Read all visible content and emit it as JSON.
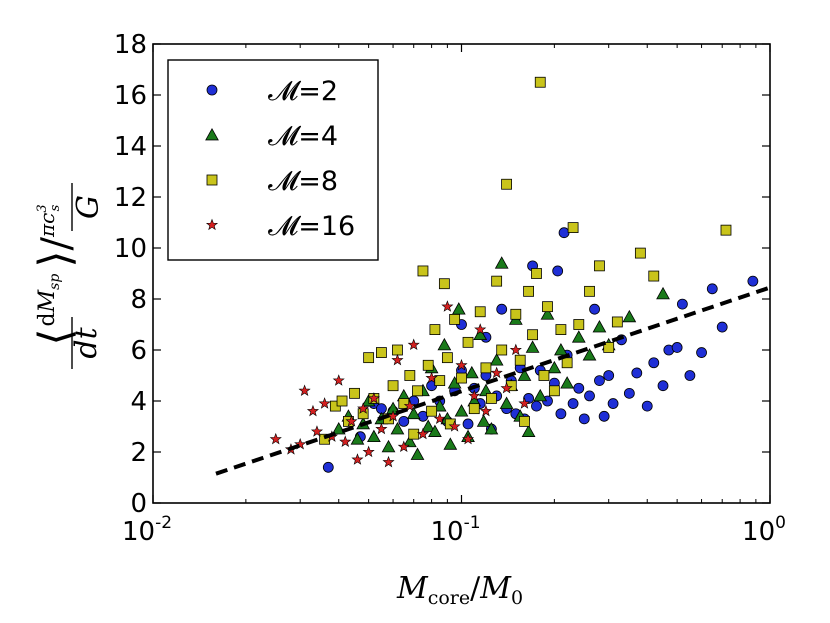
{
  "chart_data": {
    "type": "scatter",
    "xscale": "log",
    "xlim": [
      0.01,
      1.0
    ],
    "ylim": [
      0,
      18
    ],
    "xticks": [
      {
        "value": 0.01,
        "base": "10",
        "exp": "-2"
      },
      {
        "value": 0.1,
        "base": "10",
        "exp": "-1"
      },
      {
        "value": 1.0,
        "base": "10",
        "exp": "0"
      }
    ],
    "yticks": [
      "0",
      "2",
      "4",
      "6",
      "8",
      "10",
      "12",
      "14",
      "16",
      "18"
    ],
    "xlabel": "Mcore/M0",
    "ylabel": "⟨dMsp/dt⟩ / (πcs³/G)",
    "legend_location": "upper-left",
    "fit_line": {
      "style": "dashed",
      "x": [
        0.016,
        1.0
      ],
      "y": [
        1.15,
        8.45
      ]
    },
    "series": [
      {
        "name": "𝓜=2",
        "marker": "circle",
        "color": "#1f2fd6",
        "points": [
          [
            0.037,
            1.4
          ],
          [
            0.047,
            2.6
          ],
          [
            0.052,
            3.9
          ],
          [
            0.055,
            3.7
          ],
          [
            0.06,
            3.6
          ],
          [
            0.065,
            3.2
          ],
          [
            0.07,
            4.0
          ],
          [
            0.075,
            3.4
          ],
          [
            0.08,
            4.6
          ],
          [
            0.085,
            4.0
          ],
          [
            0.09,
            3.2
          ],
          [
            0.095,
            4.4
          ],
          [
            0.1,
            5.2
          ],
          [
            0.1,
            7.0
          ],
          [
            0.105,
            3.1
          ],
          [
            0.11,
            4.5
          ],
          [
            0.115,
            3.9
          ],
          [
            0.12,
            5.0
          ],
          [
            0.12,
            6.5
          ],
          [
            0.125,
            2.9
          ],
          [
            0.13,
            4.2
          ],
          [
            0.135,
            7.6
          ],
          [
            0.14,
            3.7
          ],
          [
            0.145,
            4.8
          ],
          [
            0.15,
            3.5
          ],
          [
            0.155,
            5.3
          ],
          [
            0.16,
            3.3
          ],
          [
            0.165,
            4.1
          ],
          [
            0.17,
            9.3
          ],
          [
            0.175,
            3.8
          ],
          [
            0.18,
            5.2
          ],
          [
            0.19,
            4.0
          ],
          [
            0.2,
            4.7
          ],
          [
            0.205,
            9.1
          ],
          [
            0.21,
            3.5
          ],
          [
            0.215,
            10.6
          ],
          [
            0.22,
            5.8
          ],
          [
            0.23,
            3.9
          ],
          [
            0.24,
            4.5
          ],
          [
            0.25,
            3.3
          ],
          [
            0.26,
            4.2
          ],
          [
            0.27,
            7.6
          ],
          [
            0.28,
            4.8
          ],
          [
            0.29,
            3.4
          ],
          [
            0.3,
            5.0
          ],
          [
            0.31,
            3.9
          ],
          [
            0.33,
            6.4
          ],
          [
            0.35,
            4.3
          ],
          [
            0.37,
            5.1
          ],
          [
            0.4,
            3.8
          ],
          [
            0.42,
            5.5
          ],
          [
            0.45,
            4.6
          ],
          [
            0.47,
            6.0
          ],
          [
            0.5,
            6.1
          ],
          [
            0.52,
            7.8
          ],
          [
            0.55,
            5.0
          ],
          [
            0.6,
            5.9
          ],
          [
            0.65,
            8.4
          ],
          [
            0.7,
            6.9
          ],
          [
            0.88,
            8.7
          ]
        ]
      },
      {
        "name": "𝓜=4",
        "marker": "triangle",
        "color": "#1a7a1a",
        "points": [
          [
            0.04,
            2.9
          ],
          [
            0.043,
            3.4
          ],
          [
            0.046,
            2.5
          ],
          [
            0.048,
            3.1
          ],
          [
            0.05,
            4.0
          ],
          [
            0.052,
            2.6
          ],
          [
            0.055,
            3.3
          ],
          [
            0.058,
            2.2
          ],
          [
            0.06,
            3.7
          ],
          [
            0.062,
            2.9
          ],
          [
            0.065,
            4.2
          ],
          [
            0.068,
            2.4
          ],
          [
            0.07,
            3.5
          ],
          [
            0.072,
            1.9
          ],
          [
            0.075,
            4.4
          ],
          [
            0.078,
            3.0
          ],
          [
            0.08,
            5.3
          ],
          [
            0.082,
            2.8
          ],
          [
            0.085,
            3.8
          ],
          [
            0.088,
            6.2
          ],
          [
            0.09,
            3.3
          ],
          [
            0.092,
            2.3
          ],
          [
            0.095,
            4.7
          ],
          [
            0.098,
            7.6
          ],
          [
            0.1,
            3.6
          ],
          [
            0.105,
            2.6
          ],
          [
            0.108,
            5.1
          ],
          [
            0.11,
            4.0
          ],
          [
            0.115,
            6.6
          ],
          [
            0.118,
            3.2
          ],
          [
            0.12,
            4.4
          ],
          [
            0.125,
            2.9
          ],
          [
            0.13,
            5.6
          ],
          [
            0.135,
            9.4
          ],
          [
            0.14,
            3.9
          ],
          [
            0.145,
            4.6
          ],
          [
            0.15,
            7.2
          ],
          [
            0.155,
            3.4
          ],
          [
            0.16,
            5.0
          ],
          [
            0.165,
            2.8
          ],
          [
            0.17,
            6.1
          ],
          [
            0.18,
            4.2
          ],
          [
            0.19,
            7.4
          ],
          [
            0.2,
            5.3
          ],
          [
            0.21,
            6.0
          ],
          [
            0.22,
            4.7
          ],
          [
            0.24,
            6.5
          ],
          [
            0.26,
            5.8
          ],
          [
            0.28,
            6.9
          ],
          [
            0.3,
            6.2
          ],
          [
            0.35,
            7.3
          ],
          [
            0.45,
            8.2
          ]
        ]
      },
      {
        "name": "𝓜=8",
        "marker": "square",
        "color": "#c9c41b",
        "points": [
          [
            0.036,
            2.5
          ],
          [
            0.039,
            3.8
          ],
          [
            0.041,
            4.0
          ],
          [
            0.043,
            3.2
          ],
          [
            0.045,
            4.3
          ],
          [
            0.048,
            3.5
          ],
          [
            0.05,
            5.7
          ],
          [
            0.052,
            4.1
          ],
          [
            0.055,
            5.9
          ],
          [
            0.058,
            3.3
          ],
          [
            0.06,
            4.6
          ],
          [
            0.062,
            6.0
          ],
          [
            0.065,
            3.9
          ],
          [
            0.068,
            5.0
          ],
          [
            0.07,
            2.7
          ],
          [
            0.072,
            4.4
          ],
          [
            0.075,
            9.1
          ],
          [
            0.078,
            5.4
          ],
          [
            0.08,
            3.6
          ],
          [
            0.082,
            6.8
          ],
          [
            0.085,
            4.8
          ],
          [
            0.088,
            8.6
          ],
          [
            0.09,
            5.7
          ],
          [
            0.092,
            3.1
          ],
          [
            0.095,
            7.2
          ],
          [
            0.1,
            4.9
          ],
          [
            0.105,
            6.3
          ],
          [
            0.11,
            3.7
          ],
          [
            0.115,
            7.5
          ],
          [
            0.12,
            5.3
          ],
          [
            0.125,
            4.1
          ],
          [
            0.13,
            8.7
          ],
          [
            0.135,
            6.0
          ],
          [
            0.14,
            12.5
          ],
          [
            0.145,
            4.6
          ],
          [
            0.15,
            7.4
          ],
          [
            0.155,
            5.6
          ],
          [
            0.16,
            3.2
          ],
          [
            0.165,
            8.3
          ],
          [
            0.17,
            6.6
          ],
          [
            0.175,
            9.0
          ],
          [
            0.18,
            16.5
          ],
          [
            0.185,
            5.0
          ],
          [
            0.19,
            7.7
          ],
          [
            0.2,
            4.4
          ],
          [
            0.21,
            6.8
          ],
          [
            0.22,
            5.5
          ],
          [
            0.23,
            10.8
          ],
          [
            0.24,
            7.0
          ],
          [
            0.26,
            8.3
          ],
          [
            0.28,
            9.3
          ],
          [
            0.3,
            6.1
          ],
          [
            0.32,
            7.1
          ],
          [
            0.38,
            9.8
          ],
          [
            0.42,
            8.9
          ],
          [
            0.72,
            10.7
          ]
        ]
      },
      {
        "name": "𝓜=16",
        "marker": "star",
        "color": "#d42020",
        "points": [
          [
            0.025,
            2.5
          ],
          [
            0.028,
            2.1
          ],
          [
            0.03,
            2.3
          ],
          [
            0.031,
            4.4
          ],
          [
            0.033,
            3.6
          ],
          [
            0.034,
            2.8
          ],
          [
            0.036,
            3.9
          ],
          [
            0.038,
            2.6
          ],
          [
            0.04,
            4.8
          ],
          [
            0.042,
            2.4
          ],
          [
            0.044,
            3.2
          ],
          [
            0.046,
            1.7
          ],
          [
            0.048,
            3.7
          ],
          [
            0.05,
            2.0
          ],
          [
            0.052,
            4.1
          ],
          [
            0.055,
            2.9
          ],
          [
            0.058,
            1.6
          ],
          [
            0.06,
            3.4
          ],
          [
            0.062,
            5.6
          ],
          [
            0.065,
            2.2
          ],
          [
            0.068,
            3.8
          ],
          [
            0.07,
            6.2
          ],
          [
            0.075,
            2.7
          ],
          [
            0.08,
            4.9
          ],
          [
            0.085,
            3.3
          ],
          [
            0.09,
            7.7
          ],
          [
            0.095,
            3.0
          ],
          [
            0.1,
            5.4
          ],
          [
            0.105,
            2.5
          ],
          [
            0.11,
            4.2
          ],
          [
            0.115,
            6.8
          ],
          [
            0.12,
            3.6
          ],
          [
            0.13,
            5.1
          ],
          [
            0.14,
            4.5
          ],
          [
            0.15,
            6.0
          ],
          [
            0.16,
            3.9
          ]
        ]
      }
    ]
  }
}
